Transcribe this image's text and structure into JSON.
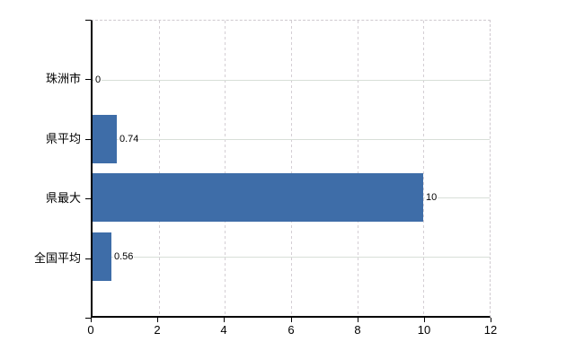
{
  "chart_data": {
    "type": "bar",
    "orientation": "horizontal",
    "title": "",
    "xlabel": "",
    "ylabel": "",
    "legend_position": "none",
    "categories": [
      "珠洲市",
      "県平均",
      "県最大",
      "全国平均"
    ],
    "values": [
      0,
      0.74,
      10,
      0.56
    ],
    "data_labels": [
      "0",
      "0.74",
      "10",
      "0.56"
    ],
    "category_positions": [
      0.2,
      0.4,
      0.6,
      0.8
    ],
    "xlim": [
      0,
      12
    ],
    "x_ticks": [
      0,
      2,
      4,
      6,
      8,
      10,
      12
    ],
    "x_tick_labels": [
      "0",
      "2",
      "4",
      "6",
      "8",
      "10",
      "12"
    ],
    "grid": {
      "vertical_style": "dashed",
      "horizontal_style": "solid",
      "frame_top_right": "dashed"
    },
    "colors": {
      "bar": "#3e6da8",
      "axis": "#000000",
      "grid_vertical": "#d4ced4",
      "grid_horizontal": "#d8dfd8",
      "frame_dash": "#cfc9cf",
      "text": "#000000",
      "background": "#ffffff"
    }
  }
}
